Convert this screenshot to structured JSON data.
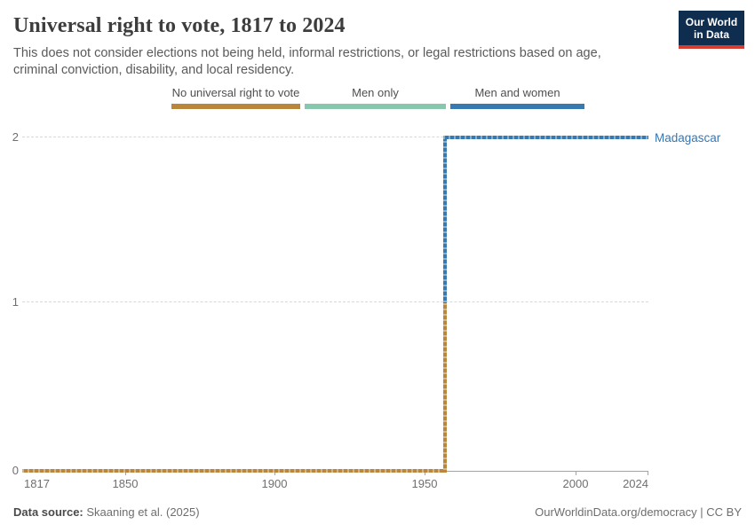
{
  "colors": {
    "tan": "#b9863c",
    "green": "#86c7ad",
    "blue": "#377ab1",
    "entity-blue": "#3577b4",
    "navy": "#0f2d4e",
    "logo-red": "#d73c31",
    "grid": "#d8d8d8",
    "axis": "#a3a3a3",
    "tick-text": "#6f6f6f",
    "title-text": "#3d3d3d",
    "subtitle-text": "#5a5a5a",
    "legend-text": "#4f4f4f",
    "footer-text": "#6e6e6e",
    "footer-bold": "#4a4a4a"
  },
  "header": {
    "title": "Universal right to vote, 1817 to 2024",
    "subtitle_line1": "This does not consider elections not being held, informal restrictions, or legal restrictions based on age,",
    "subtitle_line2": "criminal conviction, disability, and local residency."
  },
  "logo": {
    "line1": "Our World",
    "line2": "in Data"
  },
  "legend": {
    "items": [
      {
        "label": "No universal right to vote",
        "color": "#b9863c"
      },
      {
        "label": "Men only",
        "color": "#86c7ad"
      },
      {
        "label": "Men and women",
        "color": "#377ab1"
      }
    ]
  },
  "axes": {
    "y_ticks": [
      "2",
      "1",
      "0"
    ],
    "x_ticks": [
      "1817",
      "1850",
      "1900",
      "1950",
      "2000",
      "2024"
    ]
  },
  "entity_label": "Madagascar",
  "chart_data": {
    "type": "line",
    "subtype": "step",
    "title": "Universal right to vote, 1817 to 2024",
    "x_range": [
      1817,
      2024
    ],
    "y_range": [
      0,
      2
    ],
    "x_ticks": [
      1817,
      1850,
      1900,
      1950,
      2000,
      2024
    ],
    "y_ticks": [
      0,
      1,
      2
    ],
    "grid": "dashed-horizontal",
    "legend_position": "top",
    "value_categories": {
      "0": "No universal right to vote",
      "1": "Men only",
      "2": "Men and women"
    },
    "series": [
      {
        "name": "Madagascar",
        "points": [
          {
            "x": 1817,
            "y": 0
          },
          {
            "x": 1956,
            "y": 0
          },
          {
            "x": 1957,
            "y": 2
          },
          {
            "x": 2024,
            "y": 2
          }
        ],
        "segment_colors": [
          {
            "from": 1817,
            "to": 1956,
            "category": "No universal right to vote",
            "color": "#b9863c"
          },
          {
            "from": 1957,
            "to": 2024,
            "category": "Men and women",
            "color": "#377ab1"
          }
        ]
      }
    ]
  },
  "footer": {
    "source_label": "Data source:",
    "source_value": "Skaaning et al. (2025)",
    "right_text": "OurWorldinData.org/democracy | CC BY"
  }
}
